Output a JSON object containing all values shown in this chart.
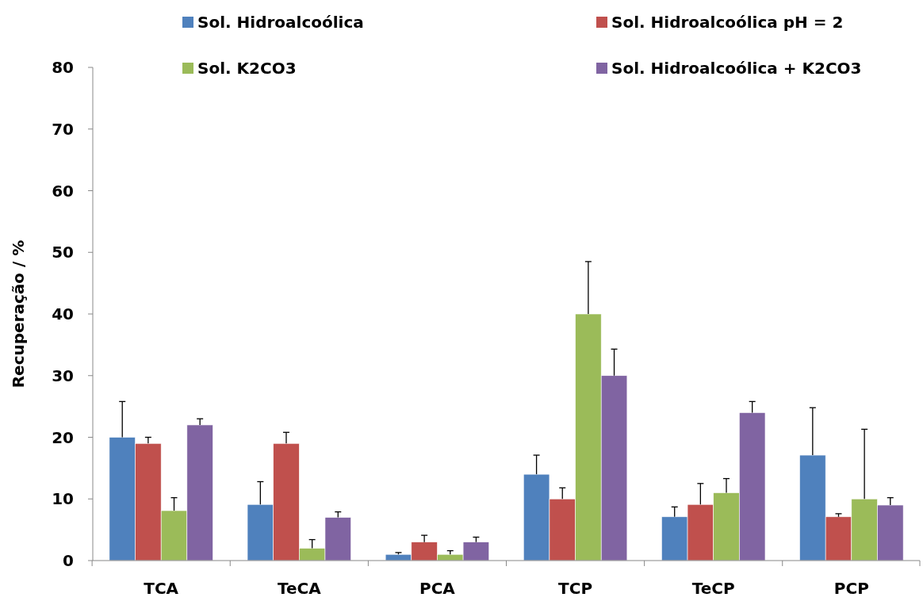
{
  "chart_data": {
    "type": "bar",
    "ylabel": "Recuperação / %",
    "categories": [
      "TCA",
      "TeCA",
      "PCA",
      "TCP",
      "TeCP",
      "PCP"
    ],
    "ylim": [
      0,
      80
    ],
    "yticks": [
      0,
      10,
      20,
      30,
      40,
      50,
      60,
      70,
      80
    ],
    "grid": false,
    "legend": "top",
    "series": [
      {
        "name": "Sol. Hidroalcoólica",
        "color": "#4f81bd",
        "values": [
          20,
          9.1,
          1,
          14,
          7.1,
          17.1
        ],
        "errors": [
          [
            20,
            25.8
          ],
          [
            9.1,
            12.8
          ],
          [
            1,
            1.3
          ],
          [
            14,
            17.1
          ],
          [
            7.1,
            8.7
          ],
          [
            17.1,
            24.8
          ]
        ]
      },
      {
        "name": "Sol. Hidroalcoólica pH = 2",
        "color": "#c0504d",
        "values": [
          19,
          19,
          3,
          10,
          9.1,
          7.1
        ],
        "errors": [
          [
            19,
            20
          ],
          [
            19,
            20.8
          ],
          [
            3,
            4.1
          ],
          [
            10,
            11.8
          ],
          [
            9.1,
            12.5
          ],
          [
            7.1,
            7.6
          ]
        ]
      },
      {
        "name": "Sol. K2CO3",
        "color": "#9bbb59",
        "values": [
          8.1,
          2,
          1,
          40,
          11,
          10
        ],
        "errors": [
          [
            8.1,
            10.2
          ],
          [
            2,
            3.4
          ],
          [
            1,
            1.6
          ],
          [
            40,
            48.5
          ],
          [
            11,
            13.3
          ],
          [
            10,
            21.3
          ]
        ]
      },
      {
        "name": "Sol. Hidroalcoólica + K2CO3",
        "color": "#8064a2",
        "values": [
          22,
          7,
          3,
          30,
          24,
          9
        ],
        "errors": [
          [
            22,
            23
          ],
          [
            7,
            7.9
          ],
          [
            3,
            3.8
          ],
          [
            30,
            34.3
          ],
          [
            24,
            25.8
          ],
          [
            9,
            10.2
          ]
        ]
      }
    ]
  }
}
